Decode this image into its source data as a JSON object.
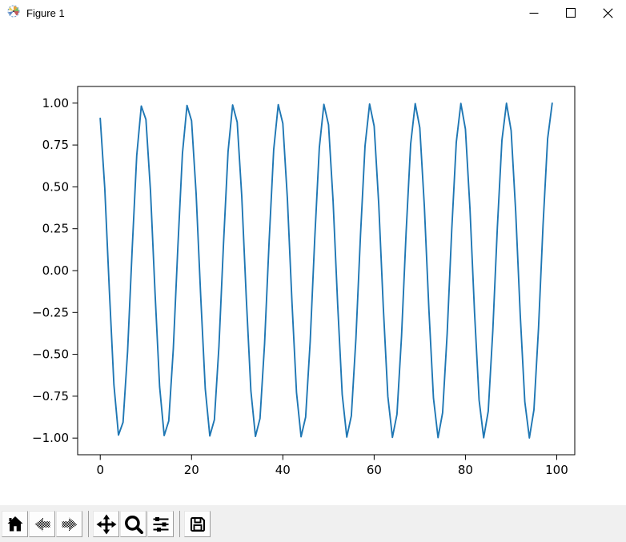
{
  "window": {
    "title": "Figure 1",
    "app_icon": "matplotlib-logo",
    "controls": [
      {
        "name": "minimize"
      },
      {
        "name": "maximize"
      },
      {
        "name": "close"
      }
    ]
  },
  "toolbar": {
    "background": "#f0f0f0",
    "buttons": [
      {
        "id": "home",
        "icon": "home-icon",
        "enabled": true
      },
      {
        "id": "back",
        "icon": "back-arrow-icon",
        "enabled": false
      },
      {
        "id": "forward",
        "icon": "forward-arrow-icon",
        "enabled": false
      },
      {
        "id": "pan",
        "icon": "pan-arrows-icon",
        "enabled": true
      },
      {
        "id": "zoom",
        "icon": "zoom-magnifier-icon",
        "enabled": true
      },
      {
        "id": "configure-subplots",
        "icon": "sliders-icon",
        "enabled": true
      },
      {
        "id": "save",
        "icon": "floppy-disk-icon",
        "enabled": true
      }
    ]
  },
  "chart_data": {
    "type": "line",
    "title": "",
    "xlabel": "",
    "ylabel": "",
    "description": "sine wave, 100 integer samples, y ≈ sin(0.63·x + 2), period ≈ 10",
    "x_start": 0,
    "x_step": 1,
    "values": [
      0.909,
      0.49,
      -0.118,
      -0.681,
      -0.982,
      -0.906,
      -0.482,
      0.126,
      0.687,
      0.983,
      0.902,
      0.475,
      -0.135,
      -0.693,
      -0.985,
      -0.898,
      -0.467,
      0.143,
      0.699,
      0.986,
      0.895,
      0.46,
      -0.151,
      -0.705,
      -0.987,
      -0.891,
      -0.452,
      0.16,
      0.711,
      0.989,
      0.887,
      0.445,
      -0.168,
      -0.717,
      -0.99,
      -0.883,
      -0.437,
      0.176,
      0.722,
      0.991,
      0.879,
      0.43,
      -0.185,
      -0.728,
      -0.992,
      -0.875,
      -0.422,
      0.193,
      0.734,
      0.993,
      0.871,
      0.415,
      -0.201,
      -0.74,
      -0.994,
      -0.867,
      -0.407,
      0.209,
      0.745,
      0.995,
      0.863,
      0.399,
      -0.217,
      -0.751,
      -0.996,
      -0.858,
      -0.392,
      0.226,
      0.756,
      0.997,
      0.854,
      0.384,
      -0.234,
      -0.762,
      -0.997,
      -0.849,
      -0.376,
      0.242,
      0.767,
      0.998,
      0.845,
      0.368,
      -0.25,
      -0.773,
      -0.998,
      -0.84,
      -0.36,
      0.258,
      0.778,
      0.999,
      0.836,
      0.353,
      -0.266,
      -0.783,
      -0.999,
      -0.831,
      -0.345,
      0.275,
      0.788,
      0.999
    ],
    "xticks": [
      0,
      20,
      40,
      60,
      80,
      100
    ],
    "xtick_labels": [
      "0",
      "20",
      "40",
      "60",
      "80",
      "100"
    ],
    "yticks": [
      1.0,
      0.75,
      0.5,
      0.25,
      0.0,
      -0.25,
      -0.5,
      -0.75,
      -1.0
    ],
    "ytick_labels": [
      "1.00",
      "0.75",
      "0.50",
      "0.25",
      "0.00",
      "−0.25",
      "−0.50",
      "−0.75",
      "−1.00"
    ],
    "xlim": [
      -4.95,
      103.95
    ],
    "ylim": [
      -1.0995,
      1.0995
    ],
    "grid": false,
    "legend": null,
    "line_color": "#1f77b4",
    "axes_edge_color": "#000000",
    "background_color": "#ffffff"
  }
}
